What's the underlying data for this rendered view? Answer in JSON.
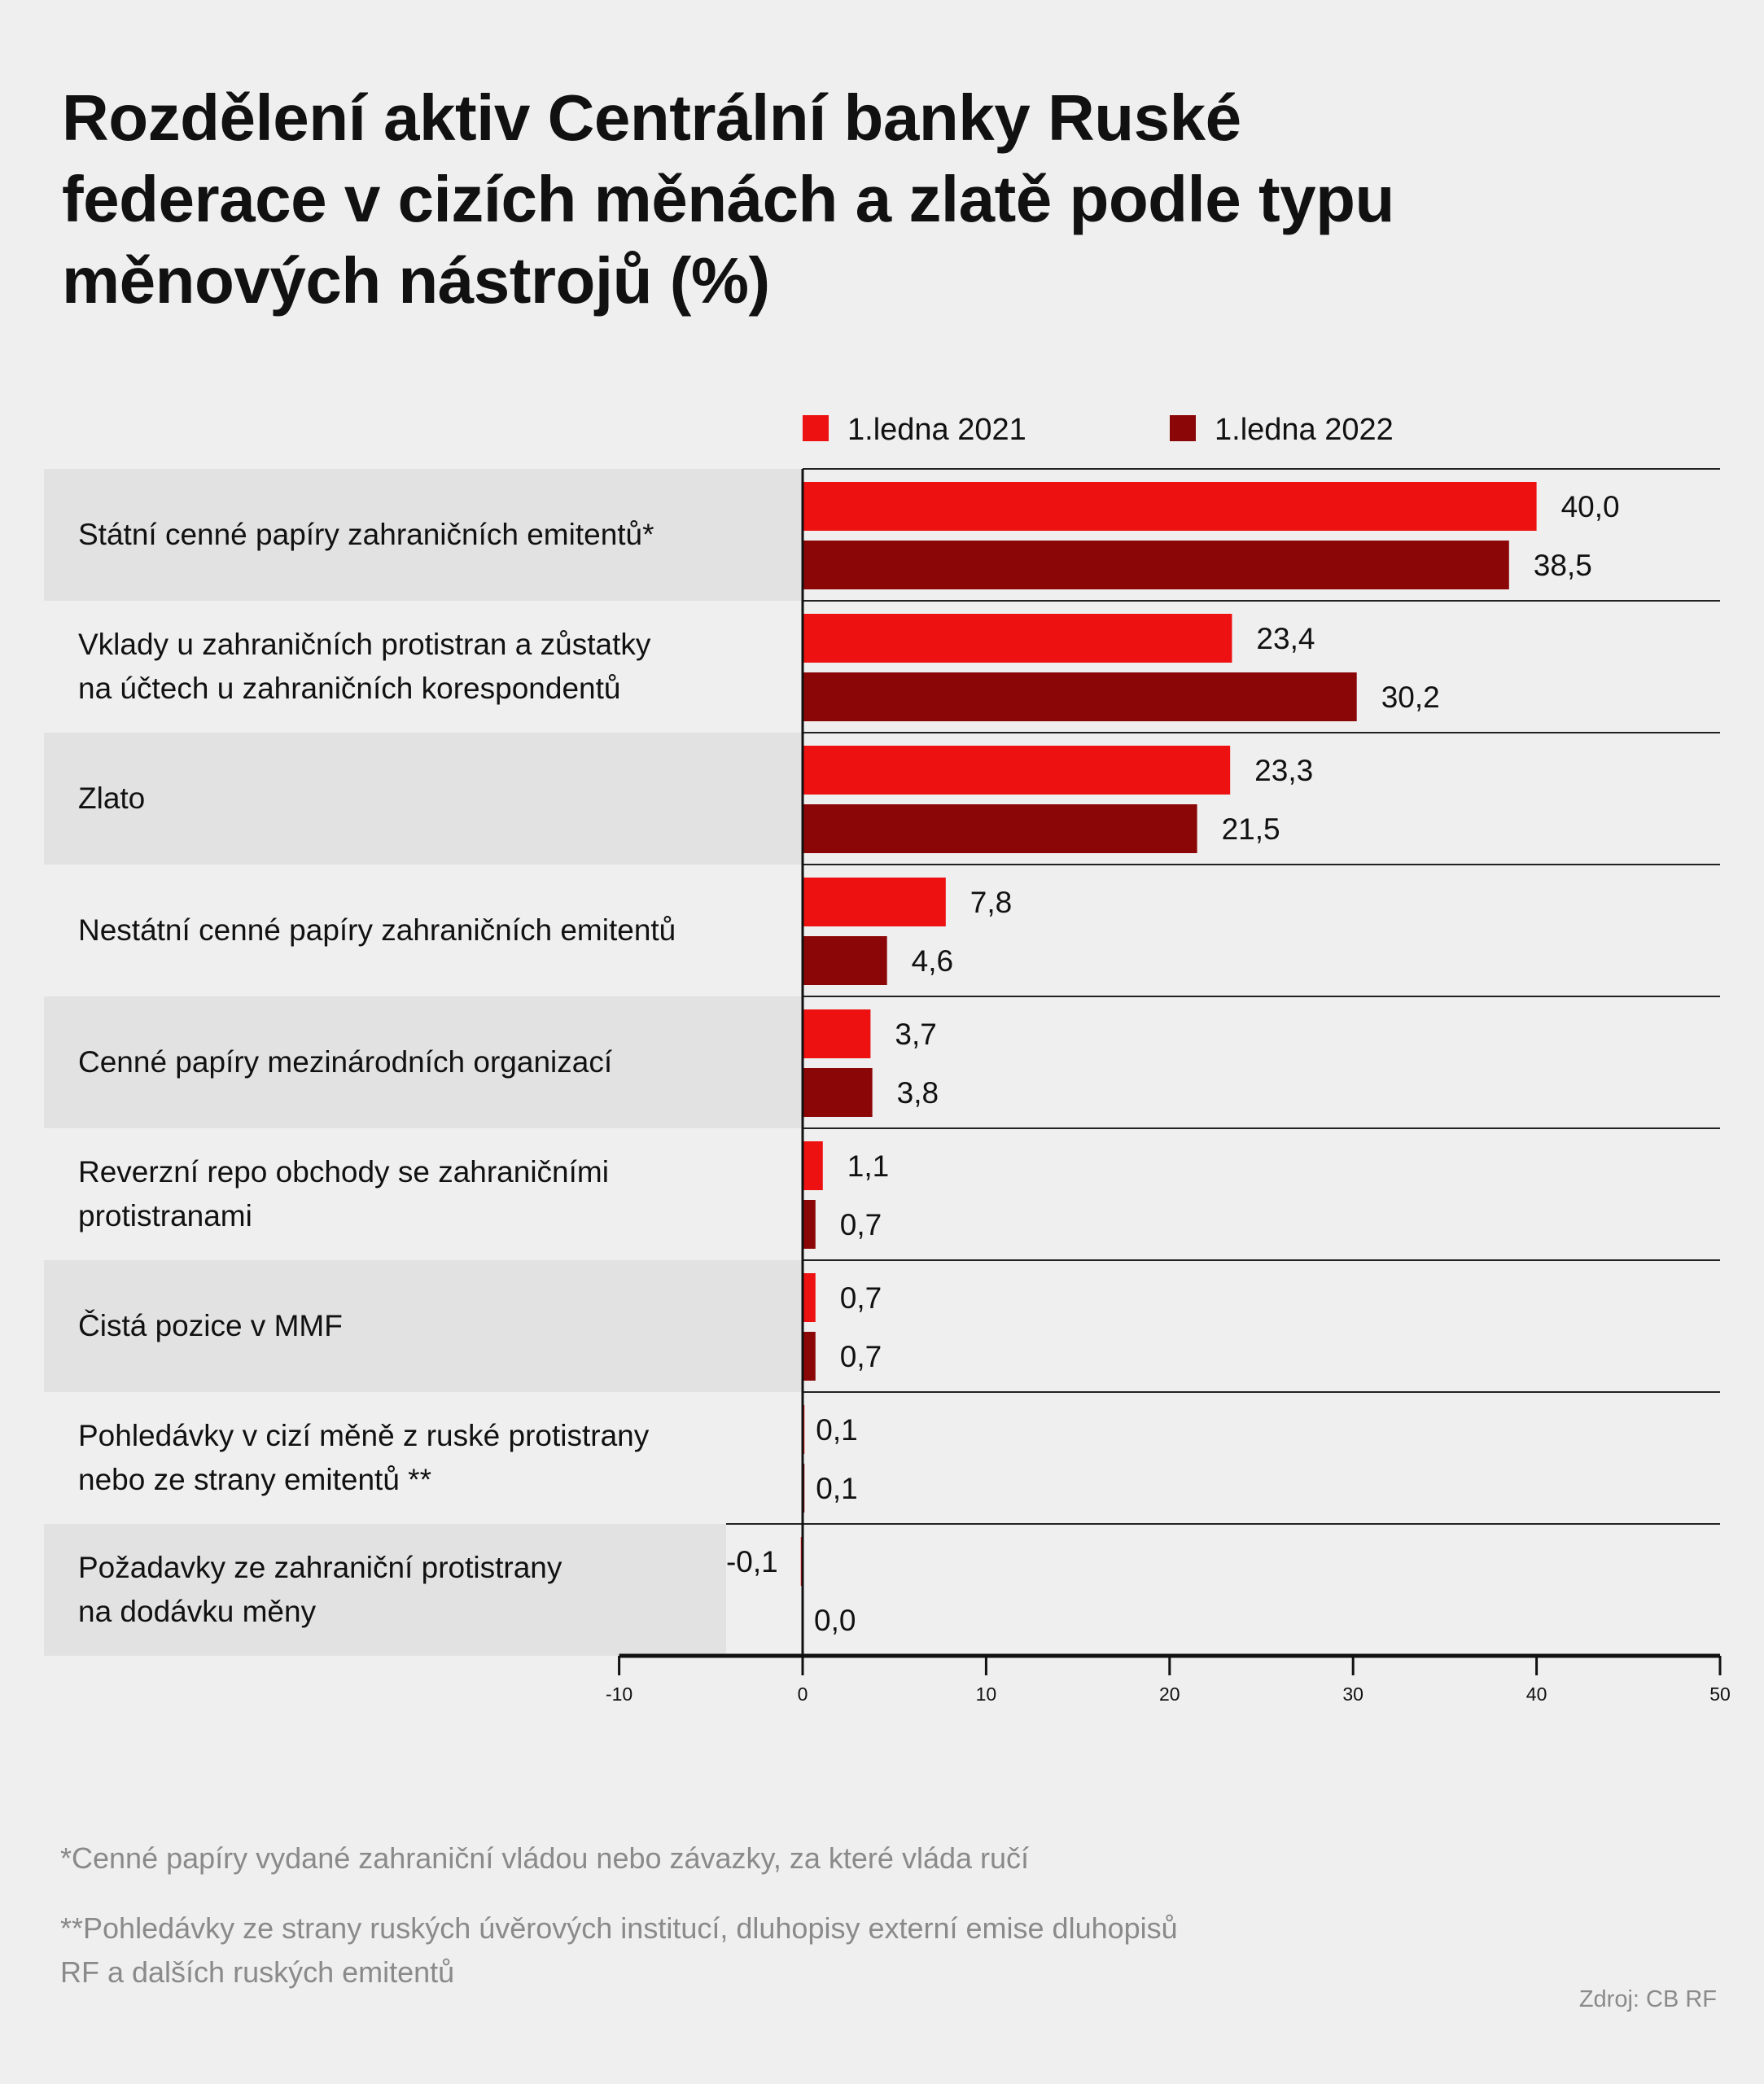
{
  "chart_data": {
    "type": "bar",
    "orientation": "horizontal",
    "title": "Rozdělení aktiv Centrální banky Ruské federace v cizích měnách a zlatě podle typu měnových nástrojů (%)",
    "categories": [
      [
        "Státní cenné papíry zahraničních emitentů*"
      ],
      [
        "Vklady u zahraničních protistran a zůstatky",
        "na účtech u zahraničních korespondentů"
      ],
      [
        "Zlato"
      ],
      [
        "Nestátní cenné papíry zahraničních emitentů"
      ],
      [
        "Cenné papíry mezinárodních organizací"
      ],
      [
        "Reverzní repo obchody se zahraničními",
        "protistranami"
      ],
      [
        "Čistá pozice v MMF"
      ],
      [
        "Pohledávky v cizí měně z ruské protistrany",
        "nebo ze strany emitentů **"
      ],
      [
        "Požadavky ze zahraniční protistrany",
        "na dodávku měny"
      ]
    ],
    "series": [
      {
        "name": "1.ledna 2021",
        "color": "#ee1111",
        "values": [
          40.0,
          23.4,
          23.3,
          7.8,
          3.7,
          1.1,
          0.7,
          0.1,
          -0.1
        ],
        "labels": [
          "40,0",
          "23,4",
          "23,3",
          "7,8",
          "3,7",
          "1,1",
          "0,7",
          "0,1",
          "-0,1"
        ]
      },
      {
        "name": "1.ledna 2022",
        "color": "#8b0707",
        "values": [
          38.5,
          30.2,
          21.5,
          4.6,
          3.8,
          0.7,
          0.7,
          0.1,
          0.0
        ],
        "labels": [
          "38,5",
          "30,2",
          "21,5",
          "4,6",
          "3,8",
          "0,7",
          "0,7",
          "0,1",
          "0,0"
        ]
      }
    ],
    "xlim": [
      -10,
      50
    ],
    "xticks": [
      "-10",
      "0",
      "10",
      "20",
      "30",
      "40",
      "50"
    ],
    "xtick_values": [
      -10,
      0,
      10,
      20,
      30,
      40,
      50
    ],
    "legend": "top",
    "grid": false
  },
  "footnotes": [
    "*Cenné papíry vydané zahraniční vládou nebo závazky, za které vláda ručí",
    "**Pohledávky ze strany ruských úvěrových institucí, dluhopisy externí emise dluhopisů",
    "RF a dalších ruských emitentů"
  ],
  "source": "Zdroj: CB RF"
}
